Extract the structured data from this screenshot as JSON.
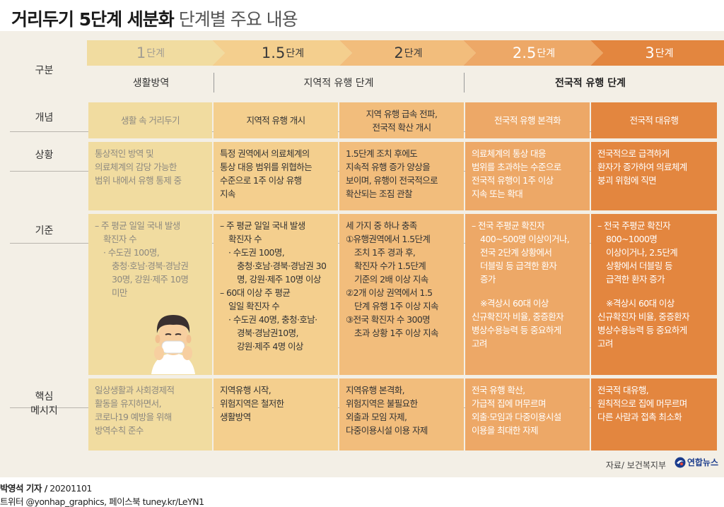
{
  "title": {
    "bold": "거리두기 5단계 세분화",
    "normal": "단계별 주요 내용"
  },
  "row_labels": {
    "category": "구분",
    "concept": "개념",
    "situation": "상황",
    "criteria": "기준",
    "message_line1": "핵심",
    "message_line2": "메시지"
  },
  "stages": [
    {
      "num": "1",
      "unit": "단계"
    },
    {
      "num": "1.5",
      "unit": "단계"
    },
    {
      "num": "2",
      "unit": "단계"
    },
    {
      "num": "2.5",
      "unit": "단계"
    },
    {
      "num": "3",
      "unit": "단계"
    }
  ],
  "groups": {
    "g1": "생활방역",
    "g2": "지역적 유행 단계",
    "g3": "전국적 유행 단계"
  },
  "concept": {
    "s1": "생활 속 거리두기",
    "s2": "지역적 유행 개시",
    "s3": [
      "지역 유행 급속 전파,",
      "전국적 확산 개시"
    ],
    "s4": "전국적 유행 본격화",
    "s5": "전국적 대유행"
  },
  "situation": {
    "s1": [
      "통상적인 방역 및",
      "의료체계의 감당 가능한",
      "범위 내에서 유행 통제 중"
    ],
    "s2": [
      "특정 권역에서 의료체계의",
      "통상 대응 범위를 위협하는",
      "수준으로 1주 이상 유행",
      "지속"
    ],
    "s3": [
      "1.5단계 조치 후에도",
      "지속적 유행 증가 양상을",
      "보이며, 유행이 전국적으로",
      "확산되는 조짐 관찰"
    ],
    "s4": [
      "의료체계의 통상 대응",
      "범위를 초과하는 수준으로",
      "전국적 유행이 1주 이상",
      "지속 또는 확대"
    ],
    "s5": [
      "전국적으로 급격하게",
      "환자가 증가하여 의료체계",
      "붕괴 위험에 직면"
    ]
  },
  "criteria": {
    "s1": [
      "– 주 평균 일일 국내 발생",
      "확진자 수",
      "· 수도권 100명,",
      "충청·호남·경북·경남권",
      "30명, 강원·제주 10명",
      "미만"
    ],
    "s2": [
      "– 주 평균 일일 국내 발생",
      "확진자 수",
      "· 수도권 100명,",
      "충청·호남·경북·경남권 30",
      "명, 강원·제주 10명 이상",
      "– 60대 이상 주 평균",
      "일일 확진자 수",
      "· 수도권 40명, 충청·호남·",
      "경북·경남권10명,",
      "강원·제주 4명 이상"
    ],
    "s3": [
      "세 가지 중 하나 충족",
      "①유행권역에서 1.5단계",
      "조치 1주 경과 후,",
      "확진자 수가 1.5단계",
      "기준의 2배 이상 지속",
      "②2개 이상 권역에서 1.5",
      "단계 유행 1주 이상 지속",
      "③전국 확진자 수 300명",
      "초과 상황 1주 이상 지속"
    ],
    "s4": [
      "– 전국 주평균 확진자",
      "400~500명 이상이거나,",
      "전국 2단계 상황에서",
      "더블링 등 급격한 환자",
      "증가",
      "※격상시 60대 이상",
      "신규확진자 비율, 중증환자",
      "병상수용능력 등 중요하게",
      "고려"
    ],
    "s5": [
      "– 전국 주평균 확진자",
      "800~1000명",
      "이상이거나, 2.5단계",
      "상황에서 더블링 등",
      "급격한 환자 증가",
      "※격상시 60대 이상",
      "신규확진자 비율, 중증환자",
      "병상수용능력 등 중요하게",
      "고려"
    ]
  },
  "message": {
    "s1": [
      "일상생활과 사회경제적",
      "활동을 유지하면서,",
      "코로나19 예방을 위해",
      "방역수칙 준수"
    ],
    "s2": [
      "지역유행 시작,",
      "위험지역은 철저한",
      "생활방역"
    ],
    "s3": [
      "지역유행 본격화,",
      "위험지역은 불필요한",
      "외출과 모임 자제,",
      "다중이용시설 이용 자제"
    ],
    "s4": [
      "전국 유행 확산,",
      "가급적 집에 머무르며",
      "외출·모임과 다중이용시설",
      "이용을 최대한 자제"
    ],
    "s5": [
      "전국적 대유행,",
      "원칙적으로 집에 머무르며",
      "다른 사람과 접촉 최소화"
    ]
  },
  "source": "자료/ 보건복지부",
  "logo": "연합뉴스",
  "credit": {
    "reporter": "박영석 기자 /",
    "date": "20201101",
    "social": "트위터 @yonhap_graphics, 페이스북 tuney.kr/LeYN1"
  },
  "colors": {
    "stage1": "#f1dca0",
    "stage2": "#f4cf8e",
    "stage3": "#f2bd7c",
    "stage4": "#eda867",
    "stage5": "#e3863f",
    "panel": "#f3efe6",
    "logo_blue": "#1a3b8c"
  }
}
